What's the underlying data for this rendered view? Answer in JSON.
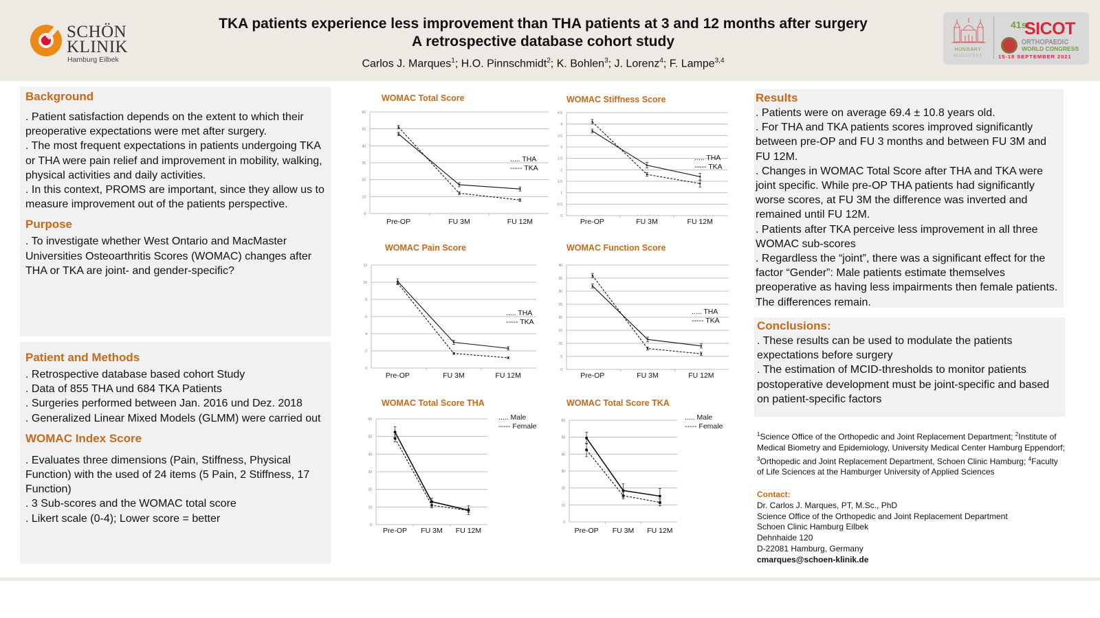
{
  "header": {
    "logo": {
      "line1": "SCHÖN",
      "line2": "KLINIK",
      "sub": "Hamburg Eilbek"
    },
    "title_line1": "TKA patients experience less improvement than THA patients at 3 and 12 months after surgery",
    "title_line2": "A retrospective database cohort study",
    "authors": [
      {
        "name": "Carlos J. Marques",
        "sup": "1",
        "sep": "; "
      },
      {
        "name": "H.O. Pinnschmidt",
        "sup": "2",
        "sep": "; "
      },
      {
        "name": "K. Bohlen",
        "sup": "3",
        "sep": "; "
      },
      {
        "name": "J. Lorenz",
        "sup": "4",
        "sep": "; "
      },
      {
        "name": "F. Lampe",
        "sup": "3,4",
        "sep": ""
      }
    ],
    "congress": {
      "city_country": "HUNGARY",
      "city": "BUDAPEST",
      "edition": "41st",
      "name": "SICOT",
      "ortho": "ORTHOPAEDIC",
      "wc": "WORLD CONGRESS",
      "dates": "15-18 SEPTEMBER 2021"
    }
  },
  "background": {
    "heading": "Background",
    "items": [
      ". Patient satisfaction depends on the extent to which their preoperative expectations were met after surgery.",
      ". The most frequent expectations in patients undergoing TKA or THA were pain relief and improvement in mobility, walking, physical activities and daily activities.",
      ". In this context, PROMS are important, since they allow us to measure improvement out of the patients perspective."
    ]
  },
  "purpose": {
    "heading": "Purpose",
    "items": [
      ". To investigate whether West Ontario and MacMaster Universities Osteoarthritis Scores (WOMAC) changes after THA or TKA are joint- and gender-specific?"
    ]
  },
  "methods": {
    "heading": "Patient and Methods",
    "items": [
      ". Retrospective database based cohort Study",
      ". Data of 855 THA und 684 TKA Patients",
      ". Surgeries performed between Jan. 2016 und Dez. 2018",
      ". Generalized Linear Mixed Models (GLMM) were carried out"
    ]
  },
  "womac": {
    "heading": "WOMAC Index Score",
    "items": [
      ". Evaluates three dimensions (Pain, Stiffness, Physical Function) with the used of 24 items (5 Pain, 2 Stiffness, 17 Function)",
      ". 3 Sub-scores and the WOMAC total score",
      ". Likert scale (0-4); Lower score = better"
    ]
  },
  "results": {
    "heading": "Results",
    "items": [
      ". Patients were on average 69.4 ± 10.8 years old.",
      ". For THA and TKA patients scores improved significantly between pre-OP and FU 3 months and between FU 3M and FU 12M.",
      ". Changes in WOMAC Total Score after THA and TKA were joint specific. While pre-OP THA patients had significantly worse scores, at FU 3M the difference was inverted and remained until FU 12M.",
      ". Patients after TKA perceive less improvement in all three WOMAC sub-scores",
      ". Regardless the “joint”, there was a significant effect for the factor “Gender”: Male patients estimate themselves preoperative as having less impairments then female patients. The differences remain."
    ]
  },
  "conclusions": {
    "heading": "Conclusions:",
    "items": [
      ". These results can be used to modulate the patients expectations before surgery",
      ". The estimation of MCID-thresholds to monitor patients postoperative development must be joint-specific and based on patient-specific factors"
    ]
  },
  "affiliations": [
    {
      "sup": "1",
      "text": "Science Office of the Orthopedic and Joint Replacement Department; "
    },
    {
      "sup": "2",
      "text": "Institute of Medical Biometry and Epidemiology, University Medical Center Hamburg Eppendorf; "
    },
    {
      "sup": "3",
      "text": "Orthopedic and Joint Replacement Department, Schoen Clinic Hamburg; "
    },
    {
      "sup": "4",
      "text": "Faculty of Life Sciences at the Hamburger University of Applied Sciences"
    }
  ],
  "contact": {
    "heading": "Contact:",
    "lines": [
      "Dr. Carlos J. Marques, PT, M.Sc., PhD",
      "Science Office of the Orthopedic and Joint Replacement Department",
      "Schoen Clinic Hamburg Eilbek",
      "Dehnhaide 120",
      "D-22081 Hamburg, Germany"
    ],
    "email": "cmarques@schoen-klinik.de"
  },
  "chart_data": [
    {
      "id": "total",
      "type": "line",
      "title": "WOMAC Total Score",
      "categories": [
        "Pre-OP",
        "FU 3M",
        "FU 12M"
      ],
      "ylim": [
        0,
        60
      ],
      "ystep": 10,
      "grid": true,
      "legend": "right",
      "legend_labels": [
        "..... THA",
        "----- TKA"
      ],
      "series": [
        {
          "name": "THA",
          "style": "dashed",
          "values": [
            51,
            12,
            8
          ],
          "err": [
            1,
            0.8,
            0.8
          ]
        },
        {
          "name": "TKA",
          "style": "solid",
          "values": [
            47,
            17,
            14.5
          ],
          "err": [
            1,
            1.2,
            1.2
          ]
        }
      ]
    },
    {
      "id": "stiffness",
      "type": "line",
      "title": "WOMAC Stiffness Score",
      "categories": [
        "Pre-OP",
        "FU 3M",
        "FU 12M"
      ],
      "ylim": [
        0,
        4.5
      ],
      "ystep": 0.5,
      "grid": true,
      "legend": "right",
      "legend_labels": [
        "..... THA",
        "----- TKA"
      ],
      "series": [
        {
          "name": "THA",
          "style": "dashed",
          "values": [
            4.1,
            1.8,
            1.4
          ],
          "err": [
            0.1,
            0.08,
            0.15
          ]
        },
        {
          "name": "TKA",
          "style": "solid",
          "values": [
            3.7,
            2.2,
            1.7
          ],
          "err": [
            0.08,
            0.12,
            0.15
          ]
        }
      ]
    },
    {
      "id": "pain",
      "type": "line",
      "title": "WOMAC Pain Score",
      "categories": [
        "Pre-OP",
        "FU 3M",
        "FU 12M"
      ],
      "ylim": [
        0,
        12
      ],
      "ystep": 2,
      "grid": true,
      "legend": "right",
      "legend_labels": [
        "..... THA",
        "----- TKA"
      ],
      "series": [
        {
          "name": "THA",
          "style": "dashed",
          "values": [
            9.9,
            1.7,
            1.2
          ],
          "err": [
            0.2,
            0.1,
            0.1
          ]
        },
        {
          "name": "TKA",
          "style": "solid",
          "values": [
            10.1,
            3.0,
            2.3
          ],
          "err": [
            0.3,
            0.25,
            0.2
          ]
        }
      ]
    },
    {
      "id": "function",
      "type": "line",
      "title": "WOMAC Function Score",
      "categories": [
        "Pre-OP",
        "FU 3M",
        "FU 12M"
      ],
      "ylim": [
        0,
        40
      ],
      "ystep": 5,
      "grid": true,
      "legend": "right",
      "legend_labels": [
        "..... THA",
        "----- TKA"
      ],
      "series": [
        {
          "name": "THA",
          "style": "dashed",
          "values": [
            36,
            8,
            6
          ],
          "err": [
            0.8,
            0.6,
            0.6
          ]
        },
        {
          "name": "TKA",
          "style": "solid",
          "values": [
            32,
            11.5,
            9
          ],
          "err": [
            0.8,
            0.9,
            0.8
          ]
        }
      ]
    },
    {
      "id": "tha_gender",
      "type": "line",
      "title": "WOMAC Total Score THA",
      "categories": [
        "Pre-OP",
        "FU 3M",
        "FU 12M"
      ],
      "ylim": [
        0,
        60
      ],
      "ystep": 10,
      "grid": true,
      "legend": "top-right",
      "legend_labels": [
        "..... Male",
        "----- Female"
      ],
      "series": [
        {
          "name": "Male",
          "style": "dashed",
          "values": [
            49,
            11,
            8
          ],
          "err": [
            2,
            1.5,
            1.2
          ]
        },
        {
          "name": "Female",
          "style": "solid",
          "values": [
            52.5,
            13,
            8.2
          ],
          "err": [
            3,
            2,
            2.5
          ]
        }
      ]
    },
    {
      "id": "tka_gender",
      "type": "line",
      "title": "WOMAC Total Score TKA",
      "categories": [
        "Pre-OP",
        "FU 3M",
        "FU 12M"
      ],
      "ylim": [
        0,
        60
      ],
      "ystep": 10,
      "grid": true,
      "legend": "top-right",
      "legend_labels": [
        "..... Male",
        "----- Female"
      ],
      "series": [
        {
          "name": "Male",
          "style": "dashed",
          "values": [
            42.5,
            15.5,
            11.5
          ],
          "err": [
            4,
            2,
            2
          ]
        },
        {
          "name": "Female",
          "style": "solid",
          "values": [
            49.5,
            18.5,
            15.2
          ],
          "err": [
            3.5,
            4,
            4.5
          ]
        }
      ]
    }
  ]
}
